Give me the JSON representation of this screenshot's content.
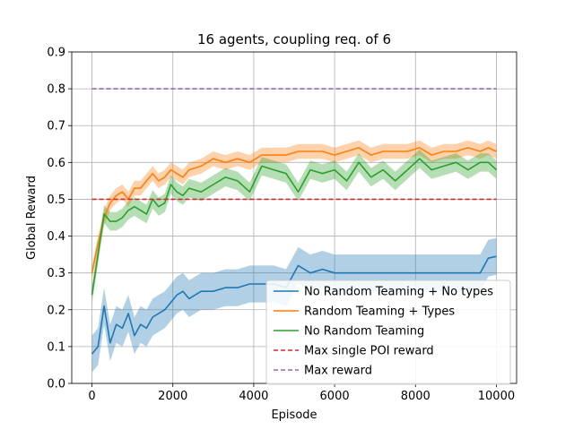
{
  "chart_data": {
    "type": "line",
    "title": "16 agents, coupling req. of 6",
    "xlabel": "Episode",
    "ylabel": "Global Reward",
    "xlim": [
      -500,
      10500
    ],
    "ylim": [
      0.0,
      0.9
    ],
    "xticks": [
      0,
      2000,
      4000,
      6000,
      8000,
      10000
    ],
    "yticks": [
      0.0,
      0.1,
      0.2,
      0.3,
      0.4,
      0.5,
      0.6,
      0.7,
      0.8,
      0.9
    ],
    "xtick_labels": [
      "0",
      "2000",
      "4000",
      "6000",
      "8000",
      "10000"
    ],
    "ytick_labels": [
      "0.0",
      "0.1",
      "0.2",
      "0.3",
      "0.4",
      "0.5",
      "0.6",
      "0.7",
      "0.8",
      "0.9"
    ],
    "grid": true,
    "legend": "lower-right",
    "series": [
      {
        "name": "No Random Teaming + No types",
        "color": "#1f77b4",
        "style": "solid",
        "band": 0.05,
        "x": [
          0,
          150,
          300,
          450,
          600,
          750,
          900,
          1050,
          1200,
          1350,
          1500,
          1650,
          1800,
          1950,
          2100,
          2250,
          2400,
          2700,
          3000,
          3300,
          3600,
          3900,
          4200,
          4500,
          4800,
          5100,
          5400,
          5700,
          6000,
          6300,
          6600,
          6900,
          7200,
          7500,
          7800,
          8100,
          8400,
          8700,
          9000,
          9300,
          9600,
          9800,
          10000
        ],
        "y": [
          0.08,
          0.1,
          0.21,
          0.11,
          0.16,
          0.15,
          0.19,
          0.13,
          0.16,
          0.15,
          0.18,
          0.19,
          0.2,
          0.22,
          0.24,
          0.25,
          0.23,
          0.25,
          0.25,
          0.26,
          0.26,
          0.27,
          0.27,
          0.27,
          0.26,
          0.32,
          0.3,
          0.31,
          0.3,
          0.3,
          0.3,
          0.3,
          0.3,
          0.3,
          0.3,
          0.3,
          0.3,
          0.3,
          0.3,
          0.3,
          0.3,
          0.34,
          0.345
        ]
      },
      {
        "name": "Random Teaming + Types",
        "color": "#ff7f0e",
        "style": "solid",
        "band": 0.02,
        "x": [
          0,
          150,
          300,
          450,
          600,
          750,
          900,
          1050,
          1200,
          1350,
          1500,
          1650,
          1800,
          1950,
          2100,
          2250,
          2400,
          2700,
          3000,
          3300,
          3600,
          3900,
          4200,
          4500,
          4800,
          5100,
          5400,
          5700,
          6000,
          6300,
          6600,
          6900,
          7200,
          7500,
          7800,
          8100,
          8400,
          8700,
          9000,
          9300,
          9600,
          9800,
          10000
        ],
        "y": [
          0.3,
          0.38,
          0.45,
          0.49,
          0.51,
          0.52,
          0.5,
          0.53,
          0.53,
          0.55,
          0.57,
          0.55,
          0.56,
          0.58,
          0.57,
          0.56,
          0.58,
          0.59,
          0.61,
          0.6,
          0.61,
          0.6,
          0.62,
          0.62,
          0.62,
          0.63,
          0.63,
          0.63,
          0.62,
          0.63,
          0.64,
          0.62,
          0.63,
          0.63,
          0.63,
          0.64,
          0.62,
          0.63,
          0.63,
          0.64,
          0.63,
          0.64,
          0.63
        ]
      },
      {
        "name": "No Random Teaming",
        "color": "#2ca02c",
        "style": "solid",
        "band": 0.025,
        "x": [
          0,
          150,
          300,
          450,
          600,
          750,
          900,
          1050,
          1200,
          1350,
          1500,
          1650,
          1800,
          1950,
          2100,
          2250,
          2400,
          2700,
          3000,
          3300,
          3600,
          3900,
          4200,
          4500,
          4800,
          5100,
          5400,
          5700,
          6000,
          6300,
          6600,
          6900,
          7200,
          7500,
          7800,
          8100,
          8400,
          8700,
          9000,
          9300,
          9600,
          9800,
          10000
        ],
        "y": [
          0.24,
          0.35,
          0.46,
          0.44,
          0.44,
          0.45,
          0.47,
          0.48,
          0.47,
          0.46,
          0.5,
          0.48,
          0.49,
          0.54,
          0.52,
          0.51,
          0.53,
          0.52,
          0.54,
          0.56,
          0.55,
          0.52,
          0.59,
          0.58,
          0.57,
          0.52,
          0.58,
          0.57,
          0.58,
          0.55,
          0.6,
          0.56,
          0.58,
          0.55,
          0.58,
          0.61,
          0.58,
          0.59,
          0.6,
          0.58,
          0.6,
          0.6,
          0.58
        ]
      },
      {
        "name": "Max single POI reward",
        "color": "#d62728",
        "style": "dashed",
        "x": [
          0,
          10000
        ],
        "y": [
          0.5,
          0.5
        ]
      },
      {
        "name": "Max reward",
        "color": "#9467bd",
        "style": "dashed",
        "x": [
          0,
          10000
        ],
        "y": [
          0.8,
          0.8
        ]
      }
    ]
  }
}
